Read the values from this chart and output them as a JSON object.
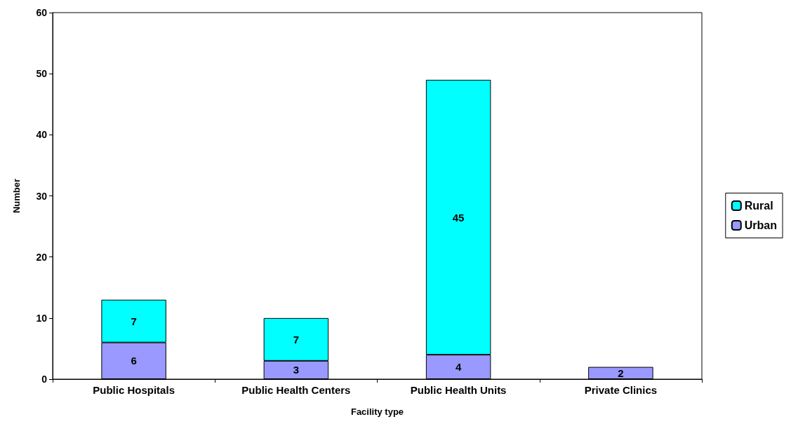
{
  "chart_data": {
    "type": "bar",
    "xlabel": "Facility type",
    "ylabel": "Number",
    "categories": [
      "Public Hospitals",
      "Public Health Centers",
      "Public Health Units",
      "Private Clinics"
    ],
    "series": [
      {
        "name": "Urban",
        "color": "#9999ff",
        "values": [
          6,
          3,
          4,
          2
        ]
      },
      {
        "name": "Rural",
        "color": "#00ffff",
        "values": [
          7,
          7,
          45,
          null
        ]
      }
    ],
    "stacked": true,
    "data_labels": true,
    "ylim": [
      0,
      60
    ],
    "yticks": [
      0,
      10,
      20,
      30,
      40,
      50,
      60
    ],
    "grid": false,
    "legend": "right"
  }
}
